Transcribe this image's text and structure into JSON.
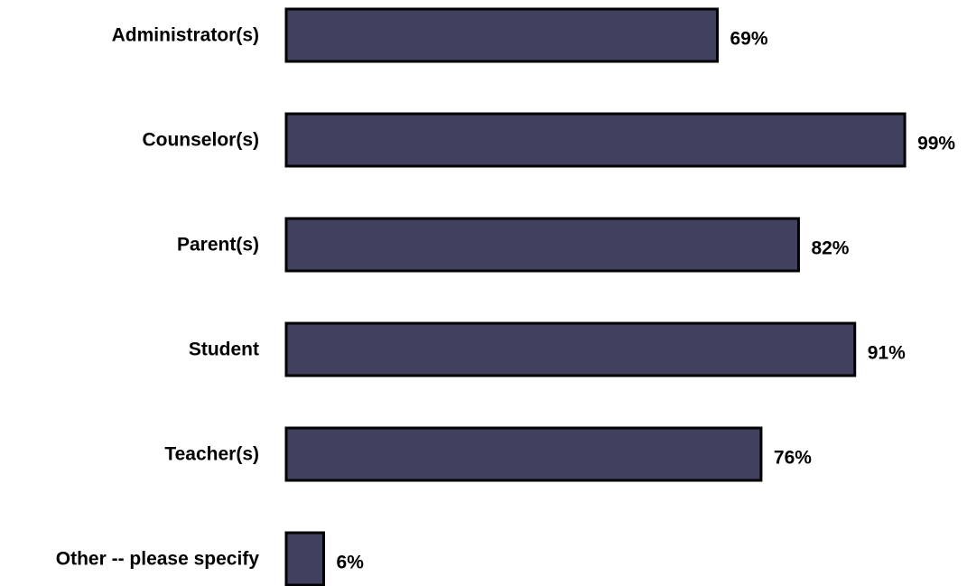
{
  "chart_data": {
    "type": "bar",
    "orientation": "horizontal",
    "categories": [
      "Administrator(s)",
      "Counselor(s)",
      "Parent(s)",
      "Student",
      "Teacher(s)",
      "Other -- please specify"
    ],
    "values": [
      69,
      99,
      82,
      91,
      76,
      6
    ],
    "value_labels": [
      "69%",
      "99%",
      "82%",
      "91%",
      "76%",
      "6%"
    ],
    "unit": "%",
    "xlim": [
      0,
      100
    ],
    "grid": false,
    "legend": "none",
    "title": "",
    "xlabel": "",
    "ylabel": "",
    "colors": {
      "bar_fill": "#41415f",
      "bar_stroke": "#000000"
    }
  }
}
